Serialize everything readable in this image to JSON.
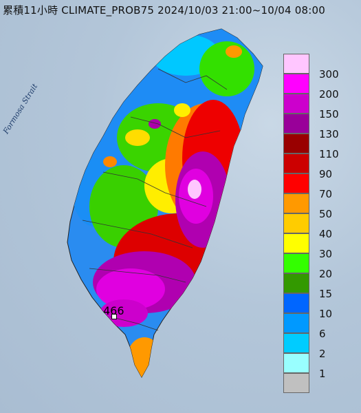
{
  "header": {
    "title": "累積11小時 CLIMATE_PROB75 2024/10/03 21:00~10/04 08:00"
  },
  "map": {
    "sea_label": "Formosa Strait",
    "peak_value": "466"
  },
  "legend": {
    "items": [
      {
        "label": "300",
        "color": "#ffc6ff"
      },
      {
        "label": "200",
        "color": "#ff00ff"
      },
      {
        "label": "150",
        "color": "#cc00cc"
      },
      {
        "label": "130",
        "color": "#990099"
      },
      {
        "label": "110",
        "color": "#990000"
      },
      {
        "label": "90",
        "color": "#cc0000"
      },
      {
        "label": "70",
        "color": "#ff0000"
      },
      {
        "label": "50",
        "color": "#ff9900"
      },
      {
        "label": "40",
        "color": "#ffcc00"
      },
      {
        "label": "30",
        "color": "#ffff00"
      },
      {
        "label": "20",
        "color": "#33ff00"
      },
      {
        "label": "15",
        "color": "#339900"
      },
      {
        "label": "10",
        "color": "#0066ff"
      },
      {
        "label": "6",
        "color": "#0099ff"
      },
      {
        "label": "2",
        "color": "#00ccff"
      },
      {
        "label": "1",
        "color": "#99ffff"
      },
      {
        "label": "",
        "color": "#c0c0c0"
      }
    ]
  }
}
